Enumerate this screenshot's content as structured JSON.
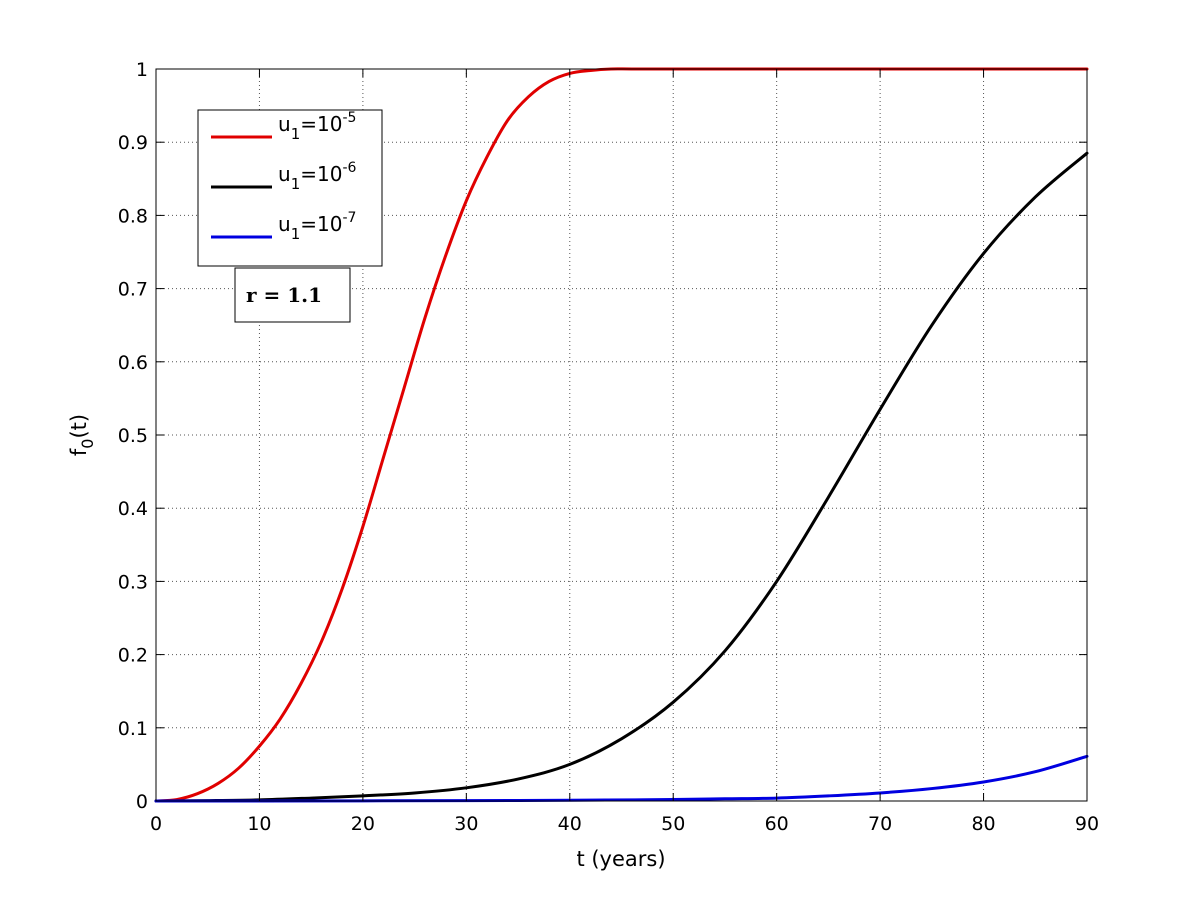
{
  "chart_data": {
    "type": "line",
    "xlabel": "t (years)",
    "ylabel_main": "f",
    "ylabel_sub": "0",
    "ylabel_rest": "(t)",
    "xlim": [
      0,
      90
    ],
    "ylim": [
      0,
      1
    ],
    "xticks": [
      0,
      10,
      20,
      30,
      40,
      50,
      60,
      70,
      80,
      90
    ],
    "yticks": [
      0,
      0.1,
      0.2,
      0.3,
      0.4,
      0.5,
      0.6,
      0.7,
      0.8,
      0.9,
      1
    ],
    "xtick_labels": [
      "0",
      "10",
      "20",
      "30",
      "40",
      "50",
      "60",
      "70",
      "80",
      "90"
    ],
    "ytick_labels": [
      "0",
      "0.1",
      "0.2",
      "0.3",
      "0.4",
      "0.5",
      "0.6",
      "0.7",
      "0.8",
      "0.9",
      "1"
    ],
    "grid": true,
    "legend_position": "top-left",
    "annotation": "r = 1.1",
    "series": [
      {
        "legend_base": "u",
        "legend_sub": "1",
        "legend_mid": "=10",
        "legend_sup": "-5",
        "color": "#e00000",
        "x": [
          0,
          2,
          4,
          6,
          8,
          10,
          12,
          14,
          16,
          18,
          20,
          22,
          24,
          26,
          28,
          30,
          32,
          34,
          36,
          38,
          40,
          42,
          44,
          46,
          50,
          60,
          70,
          80,
          90
        ],
        "y": [
          0,
          0.002,
          0.01,
          0.024,
          0.045,
          0.075,
          0.112,
          0.16,
          0.218,
          0.29,
          0.375,
          0.47,
          0.565,
          0.66,
          0.745,
          0.82,
          0.88,
          0.93,
          0.962,
          0.983,
          0.994,
          0.998,
          1.0,
          1.0,
          1.0,
          1.0,
          1.0,
          1.0,
          1.0
        ]
      },
      {
        "legend_base": "u",
        "legend_sub": "1",
        "legend_mid": "=10",
        "legend_sup": "-6",
        "color": "#000000",
        "x": [
          0,
          5,
          10,
          15,
          20,
          25,
          30,
          35,
          40,
          45,
          50,
          55,
          60,
          65,
          70,
          75,
          80,
          85,
          90
        ],
        "y": [
          0,
          0.0005,
          0.0015,
          0.004,
          0.007,
          0.011,
          0.018,
          0.03,
          0.05,
          0.085,
          0.135,
          0.205,
          0.3,
          0.415,
          0.535,
          0.65,
          0.748,
          0.825,
          0.885
        ]
      },
      {
        "legend_base": "u",
        "legend_sub": "1",
        "legend_mid": "=10",
        "legend_sup": "-7",
        "color": "#0000e0",
        "x": [
          0,
          10,
          20,
          30,
          40,
          50,
          55,
          60,
          65,
          70,
          75,
          80,
          85,
          90
        ],
        "y": [
          0,
          0,
          0.0002,
          0.0005,
          0.001,
          0.002,
          0.003,
          0.004,
          0.007,
          0.011,
          0.017,
          0.026,
          0.04,
          0.061
        ]
      }
    ]
  }
}
